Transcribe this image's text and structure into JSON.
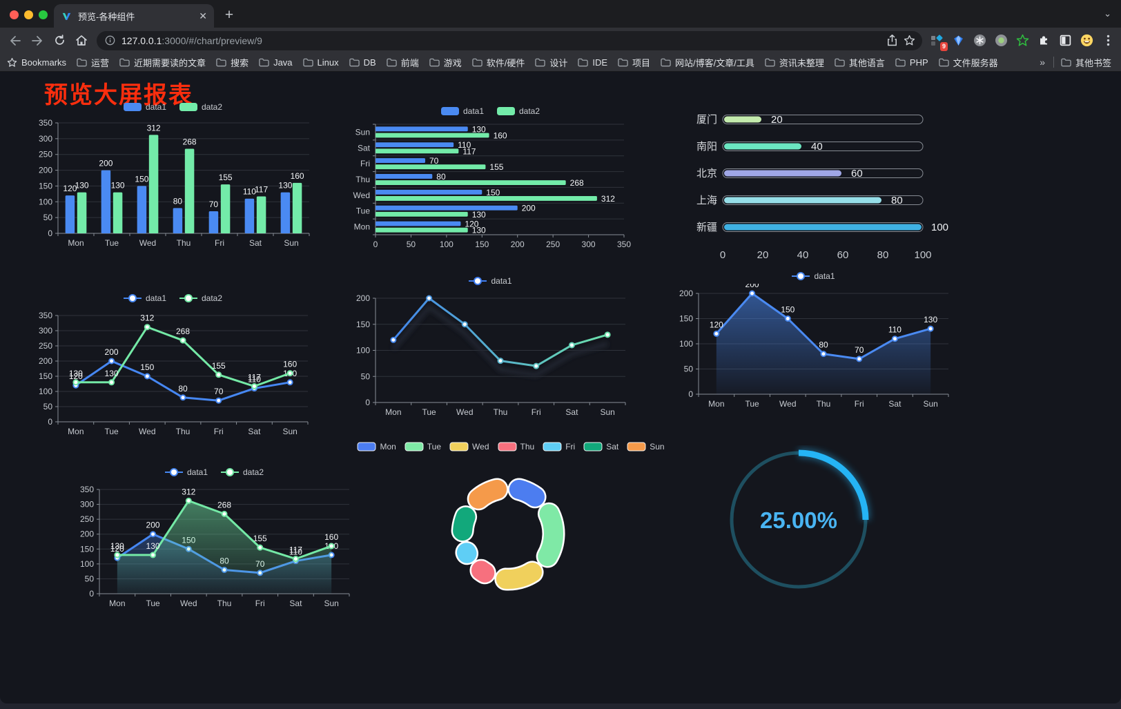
{
  "browser": {
    "tab_title": "预览-各种组件",
    "url_host": "127.0.0.1",
    "url_rest": ":3000/#/chart/preview/9",
    "bookmarks_label": "Bookmarks",
    "bookmarks": [
      "运营",
      "近期需要读的文章",
      "搜索",
      "Java",
      "Linux",
      "DB",
      "前端",
      "游戏",
      "软件/硬件",
      "设计",
      "IDE",
      "项目",
      "网站/博客/文章/工具",
      "资讯未整理",
      "其他语言",
      "PHP",
      "文件服务器"
    ],
    "bookmarks_overflow": "»",
    "other_bookmarks_label": "其他书签",
    "extension_badge": "9"
  },
  "page": {
    "title": "预览大屏报表",
    "title_color": "#fb2e0e",
    "background": "#14161d"
  },
  "chart_data": [
    {
      "name": "bar-vertical",
      "type": "bar",
      "categories": [
        "Mon",
        "Tue",
        "Wed",
        "Thu",
        "Fri",
        "Sat",
        "Sun"
      ],
      "series": [
        {
          "name": "data1",
          "color": "#4a8af2",
          "values": [
            120,
            200,
            150,
            80,
            70,
            110,
            130
          ]
        },
        {
          "name": "data2",
          "color": "#73eba9",
          "values": [
            130,
            130,
            312,
            268,
            155,
            117,
            160
          ]
        }
      ],
      "ylim": [
        0,
        350
      ],
      "ystep": 50,
      "value_labels": true,
      "legend_position": "top"
    },
    {
      "name": "bar-horizontal",
      "type": "hbar",
      "categories": [
        "Mon",
        "Tue",
        "Wed",
        "Thu",
        "Fri",
        "Sat",
        "Sun"
      ],
      "series": [
        {
          "name": "data1",
          "color": "#4a8af2",
          "values": [
            120,
            200,
            150,
            80,
            70,
            110,
            130
          ]
        },
        {
          "name": "data2",
          "color": "#73eba9",
          "values": [
            130,
            130,
            312,
            268,
            155,
            117,
            160
          ]
        }
      ],
      "xlim": [
        0,
        350
      ],
      "xstep": 50,
      "value_labels": true,
      "legend_position": "top"
    },
    {
      "name": "progress-list",
      "type": "progress",
      "items": [
        {
          "label": "厦门",
          "value": 20,
          "color": "#c4ebad"
        },
        {
          "label": "南阳",
          "value": 40,
          "color": "#6be6c1"
        },
        {
          "label": "北京",
          "value": 60,
          "color": "#a0a7e6"
        },
        {
          "label": "上海",
          "value": 80,
          "color": "#96dee8"
        },
        {
          "label": "新疆",
          "value": 100,
          "color": "#3fb1e3"
        }
      ],
      "xlim": [
        0,
        100
      ],
      "xticks": [
        0,
        20,
        40,
        60,
        80,
        100
      ]
    },
    {
      "name": "line-two-series",
      "type": "line",
      "categories": [
        "Mon",
        "Tue",
        "Wed",
        "Thu",
        "Fri",
        "Sat",
        "Sun"
      ],
      "series": [
        {
          "name": "data1",
          "color": "#4687f2",
          "values": [
            120,
            200,
            150,
            80,
            70,
            110,
            130
          ]
        },
        {
          "name": "data2",
          "color": "#74e9a6",
          "values": [
            130,
            130,
            312,
            268,
            155,
            117,
            160
          ]
        }
      ],
      "ylim": [
        0,
        350
      ],
      "ystep": 50,
      "value_labels": true
    },
    {
      "name": "line-gradient",
      "type": "line",
      "categories": [
        "Mon",
        "Tue",
        "Wed",
        "Thu",
        "Fri",
        "Sat",
        "Sun"
      ],
      "series": [
        {
          "name": "data1",
          "gradient": [
            "#3f7df0",
            "#6fe8a6"
          ],
          "values": [
            120,
            200,
            150,
            80,
            70,
            110,
            130
          ]
        }
      ],
      "ylim": [
        0,
        200
      ],
      "ystep": 50,
      "value_labels": false,
      "shadow": true
    },
    {
      "name": "line-area-single",
      "type": "line",
      "categories": [
        "Mon",
        "Tue",
        "Wed",
        "Thu",
        "Fri",
        "Sat",
        "Sun"
      ],
      "series": [
        {
          "name": "data1",
          "color": "#4a8af2",
          "area": true,
          "values": [
            120,
            200,
            150,
            80,
            70,
            110,
            130
          ]
        }
      ],
      "ylim": [
        0,
        200
      ],
      "ystep": 50,
      "value_labels": true
    },
    {
      "name": "line-area-two-series",
      "type": "line",
      "categories": [
        "Mon",
        "Tue",
        "Wed",
        "Thu",
        "Fri",
        "Sat",
        "Sun"
      ],
      "series": [
        {
          "name": "data1",
          "color": "#4687f2",
          "area": true,
          "values": [
            120,
            200,
            150,
            80,
            70,
            110,
            130
          ]
        },
        {
          "name": "data2",
          "color": "#74e9a6",
          "area": true,
          "values": [
            130,
            130,
            312,
            268,
            155,
            117,
            160
          ]
        }
      ],
      "ylim": [
        0,
        350
      ],
      "ystep": 50,
      "value_labels": true
    },
    {
      "name": "donut",
      "type": "donut",
      "categories": [
        "Mon",
        "Tue",
        "Wed",
        "Thu",
        "Fri",
        "Sat",
        "Sun"
      ],
      "values": [
        120,
        200,
        150,
        80,
        70,
        110,
        130
      ],
      "colors": [
        "#4c7df0",
        "#7fe9a6",
        "#f0d05c",
        "#f7707e",
        "#5fcef5",
        "#12a87b",
        "#f59a4a"
      ]
    },
    {
      "name": "gauge",
      "type": "gauge",
      "value_label": "25.00%",
      "percent": 25,
      "color": "#25b4f5",
      "track_color": "#1e4f60",
      "text_color": "#49b4f2"
    }
  ]
}
